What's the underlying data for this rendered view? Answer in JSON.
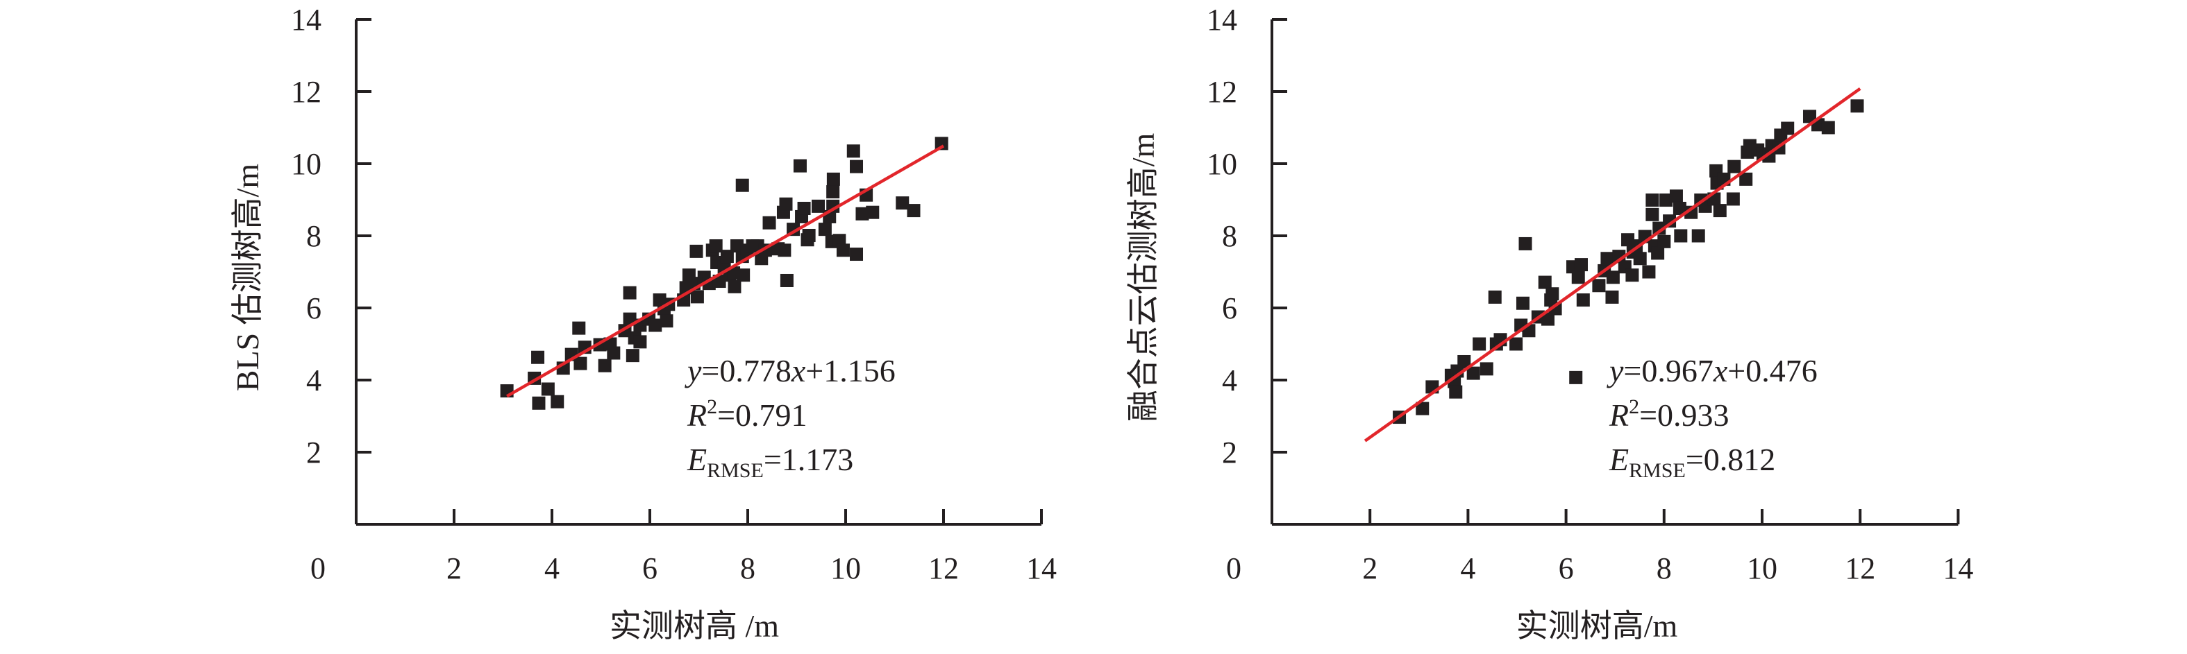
{
  "chart_data": [
    {
      "type": "scatter",
      "title": "",
      "xlabel": "实测树高 /m",
      "ylabel": "BLS 估测树高/m",
      "xlim": [
        0,
        14
      ],
      "ylim": [
        0,
        14
      ],
      "xticks": [
        "0",
        "2",
        "4",
        "6",
        "8",
        "10",
        "12",
        "14"
      ],
      "yticks": [
        "2",
        "4",
        "6",
        "8",
        "10",
        "12",
        "14"
      ],
      "grid": false,
      "fit": {
        "slope": 0.778,
        "intercept": 1.156,
        "x_range": [
          3.08,
          12.0
        ]
      },
      "annotation": {
        "eq_y": "y",
        "eq_rest": "=0.778",
        "eq_x": "x",
        "eq_tail": "+1.156",
        "r2_label": "R",
        "r2_sup": "2",
        "r2_value": "=0.791",
        "rmse_label": "E",
        "rmse_sub": "RMSE",
        "rmse_value": "=1.173"
      },
      "points": [
        [
          3.08,
          3.7
        ],
        [
          3.71,
          4.63
        ],
        [
          3.64,
          4.05
        ],
        [
          3.92,
          3.75
        ],
        [
          3.73,
          3.36
        ],
        [
          4.11,
          3.4
        ],
        [
          4.23,
          4.33
        ],
        [
          4.4,
          4.71
        ],
        [
          4.55,
          5.44
        ],
        [
          4.58,
          4.46
        ],
        [
          4.67,
          4.91
        ],
        [
          4.98,
          4.98
        ],
        [
          5.08,
          4.4
        ],
        [
          5.19,
          5.0
        ],
        [
          5.26,
          4.75
        ],
        [
          5.49,
          5.37
        ],
        [
          5.59,
          6.42
        ],
        [
          5.59,
          5.69
        ],
        [
          5.65,
          4.68
        ],
        [
          5.69,
          5.17
        ],
        [
          5.8,
          5.06
        ],
        [
          5.8,
          5.52
        ],
        [
          5.98,
          5.69
        ],
        [
          6.11,
          5.52
        ],
        [
          6.2,
          6.22
        ],
        [
          6.29,
          5.98
        ],
        [
          6.34,
          5.64
        ],
        [
          6.38,
          6.1
        ],
        [
          6.69,
          6.22
        ],
        [
          6.74,
          6.56
        ],
        [
          6.8,
          6.91
        ],
        [
          6.9,
          6.68
        ],
        [
          6.95,
          7.57
        ],
        [
          6.97,
          6.31
        ],
        [
          7.11,
          6.85
        ],
        [
          7.21,
          6.68
        ],
        [
          7.28,
          7.6
        ],
        [
          7.35,
          7.72
        ],
        [
          7.37,
          7.26
        ],
        [
          7.42,
          6.74
        ],
        [
          7.52,
          7.14
        ],
        [
          7.58,
          7.43
        ],
        [
          7.63,
          6.91
        ],
        [
          7.71,
          6.97
        ],
        [
          7.73,
          6.59
        ],
        [
          7.78,
          7.72
        ],
        [
          7.89,
          9.4
        ],
        [
          7.89,
          7.43
        ],
        [
          7.91,
          6.91
        ],
        [
          7.99,
          7.6
        ],
        [
          8.1,
          7.72
        ],
        [
          8.2,
          7.72
        ],
        [
          8.28,
          7.37
        ],
        [
          8.36,
          7.6
        ],
        [
          8.44,
          8.36
        ],
        [
          8.62,
          7.64
        ],
        [
          8.73,
          8.65
        ],
        [
          8.75,
          7.6
        ],
        [
          8.78,
          8.88
        ],
        [
          8.8,
          6.76
        ],
        [
          8.93,
          8.18
        ],
        [
          9.07,
          9.94
        ],
        [
          9.1,
          8.53
        ],
        [
          9.15,
          8.76
        ],
        [
          9.22,
          7.89
        ],
        [
          9.25,
          8.01
        ],
        [
          9.44,
          8.82
        ],
        [
          9.58,
          8.18
        ],
        [
          9.67,
          8.53
        ],
        [
          9.72,
          7.84
        ],
        [
          9.74,
          8.82
        ],
        [
          9.75,
          9.57
        ],
        [
          9.74,
          9.22
        ],
        [
          9.87,
          7.87
        ],
        [
          9.95,
          7.6
        ],
        [
          10.16,
          10.35
        ],
        [
          10.22,
          9.92
        ],
        [
          10.22,
          7.49
        ],
        [
          10.34,
          8.61
        ],
        [
          10.42,
          9.13
        ],
        [
          10.55,
          8.65
        ],
        [
          11.16,
          8.91
        ],
        [
          11.39,
          8.7
        ],
        [
          11.96,
          10.56
        ]
      ]
    },
    {
      "type": "scatter",
      "title": "",
      "xlabel": "实测树高/m",
      "ylabel": "融合点云估测树高/m",
      "xlim": [
        0,
        14
      ],
      "ylim": [
        0,
        14
      ],
      "xticks": [
        "0",
        "2",
        "4",
        "6",
        "8",
        "10",
        "12",
        "14"
      ],
      "yticks": [
        "2",
        "4",
        "6",
        "8",
        "10",
        "12",
        "14"
      ],
      "grid": false,
      "fit": {
        "slope": 0.967,
        "intercept": 0.476,
        "x_range": [
          1.9,
          12.0
        ]
      },
      "annotation": {
        "eq_y": "y",
        "eq_rest": "=0.967",
        "eq_x": "x",
        "eq_tail": "+0.476",
        "r2_label": "R",
        "r2_sup": "2",
        "r2_value": "=0.933",
        "rmse_label": "E",
        "rmse_sub": "RMSE",
        "rmse_value": "=0.812"
      },
      "points": [
        [
          2.6,
          2.97
        ],
        [
          3.07,
          3.21
        ],
        [
          3.27,
          3.81
        ],
        [
          3.66,
          4.13
        ],
        [
          3.72,
          3.96
        ],
        [
          3.75,
          3.67
        ],
        [
          3.78,
          4.25
        ],
        [
          3.92,
          4.51
        ],
        [
          4.11,
          4.19
        ],
        [
          4.23,
          5.0
        ],
        [
          4.38,
          4.31
        ],
        [
          4.55,
          6.3
        ],
        [
          4.58,
          5.0
        ],
        [
          4.66,
          5.12
        ],
        [
          4.98,
          5.0
        ],
        [
          5.08,
          5.52
        ],
        [
          5.12,
          6.13
        ],
        [
          5.17,
          7.78
        ],
        [
          5.24,
          5.37
        ],
        [
          5.43,
          5.75
        ],
        [
          5.57,
          6.71
        ],
        [
          5.63,
          5.69
        ],
        [
          5.69,
          6.22
        ],
        [
          5.72,
          6.39
        ],
        [
          5.78,
          5.98
        ],
        [
          6.14,
          7.14
        ],
        [
          6.2,
          4.07
        ],
        [
          6.25,
          6.85
        ],
        [
          6.31,
          7.2
        ],
        [
          6.35,
          6.22
        ],
        [
          6.67,
          6.62
        ],
        [
          6.78,
          7.03
        ],
        [
          6.84,
          7.37
        ],
        [
          6.94,
          6.3
        ],
        [
          6.96,
          6.85
        ],
        [
          7.08,
          7.43
        ],
        [
          7.2,
          7.14
        ],
        [
          7.26,
          7.89
        ],
        [
          7.35,
          6.91
        ],
        [
          7.37,
          7.55
        ],
        [
          7.43,
          7.72
        ],
        [
          7.51,
          7.37
        ],
        [
          7.61,
          7.98
        ],
        [
          7.69,
          7.0
        ],
        [
          7.76,
          8.99
        ],
        [
          7.76,
          8.59
        ],
        [
          7.81,
          7.72
        ],
        [
          7.87,
          7.52
        ],
        [
          7.9,
          8.21
        ],
        [
          8.0,
          7.84
        ],
        [
          8.04,
          8.99
        ],
        [
          8.11,
          8.41
        ],
        [
          8.25,
          9.1
        ],
        [
          8.32,
          8.76
        ],
        [
          8.34,
          8.0
        ],
        [
          8.55,
          8.65
        ],
        [
          8.7,
          8.0
        ],
        [
          8.75,
          8.99
        ],
        [
          8.84,
          8.82
        ],
        [
          9.02,
          9.02
        ],
        [
          9.06,
          9.8
        ],
        [
          9.08,
          9.46
        ],
        [
          9.14,
          8.7
        ],
        [
          9.22,
          9.57
        ],
        [
          9.41,
          9.02
        ],
        [
          9.43,
          9.92
        ],
        [
          9.67,
          9.57
        ],
        [
          9.7,
          10.32
        ],
        [
          9.75,
          10.5
        ],
        [
          9.91,
          10.38
        ],
        [
          10.02,
          10.27
        ],
        [
          10.14,
          10.21
        ],
        [
          10.2,
          10.5
        ],
        [
          10.34,
          10.44
        ],
        [
          10.38,
          10.79
        ],
        [
          10.52,
          10.98
        ],
        [
          10.97,
          11.31
        ],
        [
          11.14,
          11.08
        ],
        [
          11.35,
          11.0
        ],
        [
          11.94,
          11.6
        ]
      ]
    }
  ],
  "colors": {
    "axis": "#231f20",
    "marker": "#231f20",
    "fit_line": "#e2262b"
  }
}
